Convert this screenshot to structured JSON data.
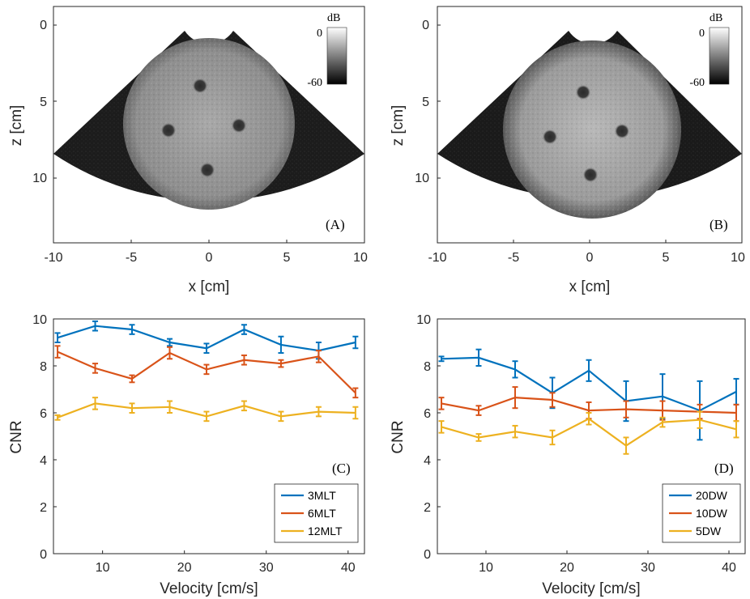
{
  "chart_data": [
    {
      "panel": "(A)",
      "type": "heatmap",
      "xlabel": "x [cm]",
      "ylabel": "z [cm]",
      "xlim": [
        -10,
        10
      ],
      "ylim": [
        0,
        14
      ],
      "xticks": [
        "-10",
        "-5",
        "0",
        "5",
        "10"
      ],
      "yticks": [
        "0",
        "5",
        "10"
      ],
      "colorbar": {
        "unit": "dB",
        "labels": [
          "0",
          "-60"
        ]
      }
    },
    {
      "panel": "(B)",
      "type": "heatmap",
      "xlabel": "x [cm]",
      "ylabel": "z [cm]",
      "xlim": [
        -10,
        10
      ],
      "ylim": [
        0,
        14
      ],
      "xticks": [
        "-10",
        "-5",
        "0",
        "5",
        "10"
      ],
      "yticks": [
        "0",
        "5",
        "10"
      ],
      "colorbar": {
        "unit": "dB",
        "labels": [
          "0",
          "-60"
        ]
      }
    },
    {
      "panel": "(C)",
      "type": "line",
      "xlabel": "Velocity [cm/s]",
      "ylabel": "CNR",
      "xlim": [
        4,
        42
      ],
      "ylim": [
        0,
        10
      ],
      "xticks": [
        "10",
        "20",
        "30",
        "40"
      ],
      "yticks": [
        "0",
        "2",
        "4",
        "6",
        "8",
        "10"
      ],
      "legend_position": "bottom-right",
      "x": [
        4.5,
        9.1,
        13.6,
        18.2,
        22.7,
        27.3,
        31.8,
        36.4,
        40.9
      ],
      "series": [
        {
          "name": "3MLT",
          "color": "#0072BD",
          "values": [
            9.2,
            9.7,
            9.55,
            9.0,
            8.75,
            9.55,
            8.9,
            8.65,
            9.0
          ],
          "errors": [
            0.2,
            0.2,
            0.2,
            0.15,
            0.2,
            0.2,
            0.35,
            0.35,
            0.25
          ]
        },
        {
          "name": "6MLT",
          "color": "#D95319",
          "values": [
            8.6,
            7.9,
            7.45,
            8.55,
            7.85,
            8.25,
            8.1,
            8.4,
            6.85
          ],
          "errors": [
            0.25,
            0.2,
            0.15,
            0.25,
            0.2,
            0.2,
            0.15,
            0.25,
            0.2
          ]
        },
        {
          "name": "12MLT",
          "color": "#EDB120",
          "values": [
            5.8,
            6.4,
            6.2,
            6.25,
            5.85,
            6.3,
            5.85,
            6.05,
            6.0
          ],
          "errors": [
            0.1,
            0.25,
            0.2,
            0.25,
            0.2,
            0.2,
            0.2,
            0.2,
            0.25
          ]
        }
      ]
    },
    {
      "panel": "(D)",
      "type": "line",
      "xlabel": "Velocity [cm/s]",
      "ylabel": "CNR",
      "xlim": [
        4,
        42
      ],
      "ylim": [
        0,
        10
      ],
      "xticks": [
        "10",
        "20",
        "30",
        "40"
      ],
      "yticks": [
        "0",
        "2",
        "4",
        "6",
        "8",
        "10"
      ],
      "legend_position": "bottom-right",
      "x": [
        4.5,
        9.1,
        13.6,
        18.2,
        22.7,
        27.3,
        31.8,
        36.4,
        40.9
      ],
      "series": [
        {
          "name": "20DW",
          "color": "#0072BD",
          "values": [
            8.3,
            8.35,
            7.85,
            6.85,
            7.8,
            6.5,
            6.7,
            6.1,
            6.9
          ],
          "errors": [
            0.1,
            0.35,
            0.35,
            0.65,
            0.45,
            0.85,
            0.95,
            1.25,
            0.55
          ]
        },
        {
          "name": "10DW",
          "color": "#D95319",
          "values": [
            6.4,
            6.1,
            6.65,
            6.55,
            6.1,
            6.15,
            6.1,
            6.05,
            6.0
          ],
          "errors": [
            0.25,
            0.2,
            0.45,
            0.3,
            0.35,
            0.35,
            0.4,
            0.3,
            0.35
          ]
        },
        {
          "name": "5DW",
          "color": "#EDB120",
          "values": [
            5.4,
            4.95,
            5.2,
            4.95,
            5.75,
            4.6,
            5.6,
            5.7,
            5.3
          ],
          "errors": [
            0.25,
            0.15,
            0.25,
            0.3,
            0.25,
            0.35,
            0.2,
            0.35,
            0.35
          ]
        }
      ]
    }
  ]
}
